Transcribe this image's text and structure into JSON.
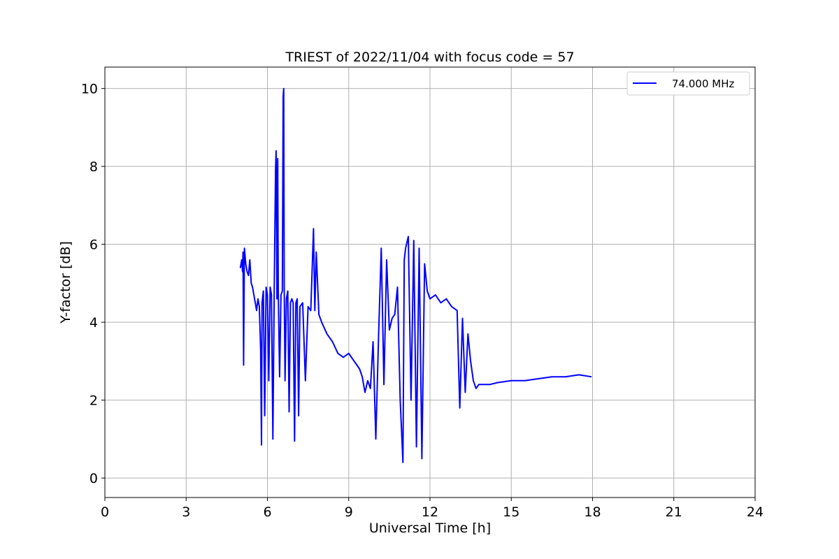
{
  "chart_data": {
    "type": "line",
    "title": "TRIEST of 2022/11/04 with focus code = 57",
    "xlabel": "Universal Time [h]",
    "ylabel": "Y-factor [dB]",
    "xlim": [
      0,
      24
    ],
    "ylim": [
      -0.5,
      10.55
    ],
    "xticks": [
      0,
      3,
      6,
      9,
      12,
      15,
      18,
      21,
      24
    ],
    "yticks": [
      0,
      2,
      4,
      6,
      8,
      10
    ],
    "grid": true,
    "legend_position": "top-right",
    "series": [
      {
        "name": "74.000 MHz",
        "color": "#0000ff",
        "x": [
          5.0,
          5.05,
          5.08,
          5.1,
          5.12,
          5.15,
          5.2,
          5.25,
          5.3,
          5.35,
          5.4,
          5.45,
          5.5,
          5.55,
          5.6,
          5.65,
          5.7,
          5.75,
          5.78,
          5.8,
          5.85,
          5.9,
          5.95,
          6.0,
          6.05,
          6.1,
          6.15,
          6.2,
          6.25,
          6.3,
          6.32,
          6.35,
          6.38,
          6.4,
          6.45,
          6.5,
          6.55,
          6.58,
          6.6,
          6.62,
          6.65,
          6.7,
          6.75,
          6.8,
          6.85,
          6.9,
          6.95,
          7.0,
          7.05,
          7.1,
          7.15,
          7.2,
          7.3,
          7.4,
          7.5,
          7.6,
          7.7,
          7.75,
          7.8,
          7.9,
          8.0,
          8.2,
          8.4,
          8.6,
          8.8,
          9.0,
          9.2,
          9.4,
          9.5,
          9.6,
          9.7,
          9.8,
          9.9,
          10.0,
          10.1,
          10.2,
          10.3,
          10.4,
          10.5,
          10.6,
          10.7,
          10.8,
          10.9,
          11.0,
          11.05,
          11.1,
          11.2,
          11.3,
          11.4,
          11.5,
          11.6,
          11.7,
          11.8,
          11.9,
          12.0,
          12.2,
          12.4,
          12.6,
          12.8,
          13.0,
          13.1,
          13.2,
          13.3,
          13.4,
          13.5,
          13.6,
          13.7,
          13.8,
          14.0,
          14.2,
          14.5,
          15.0,
          15.5,
          16.0,
          16.5,
          17.0,
          17.5,
          17.95
        ],
        "values": [
          5.4,
          5.6,
          5.3,
          5.8,
          2.9,
          5.9,
          5.5,
          5.3,
          5.2,
          5.6,
          5.0,
          4.9,
          4.7,
          4.5,
          4.3,
          4.6,
          4.4,
          3.3,
          0.85,
          4.5,
          4.8,
          1.6,
          4.9,
          4.7,
          2.5,
          4.9,
          4.7,
          1.0,
          4.8,
          7.9,
          8.4,
          4.6,
          8.2,
          4.8,
          2.6,
          4.7,
          4.8,
          9.8,
          10.0,
          4.9,
          2.5,
          4.6,
          4.8,
          1.7,
          4.5,
          4.6,
          4.5,
          0.95,
          4.5,
          4.6,
          1.6,
          4.4,
          4.5,
          2.5,
          4.4,
          4.3,
          6.4,
          4.3,
          5.8,
          4.2,
          4.0,
          3.7,
          3.5,
          3.2,
          3.1,
          3.2,
          3.0,
          2.8,
          2.6,
          2.2,
          2.5,
          2.3,
          3.5,
          1.0,
          3.6,
          5.9,
          2.4,
          5.6,
          3.8,
          4.1,
          4.2,
          4.9,
          2.0,
          0.4,
          5.6,
          5.9,
          6.2,
          2.0,
          6.1,
          0.8,
          5.9,
          0.5,
          5.5,
          4.8,
          4.6,
          4.7,
          4.5,
          4.6,
          4.4,
          4.3,
          1.8,
          4.1,
          2.2,
          3.7,
          3.0,
          2.5,
          2.3,
          2.4,
          2.4,
          2.4,
          2.45,
          2.5,
          2.5,
          2.55,
          2.6,
          2.6,
          2.65,
          2.6
        ]
      }
    ]
  }
}
